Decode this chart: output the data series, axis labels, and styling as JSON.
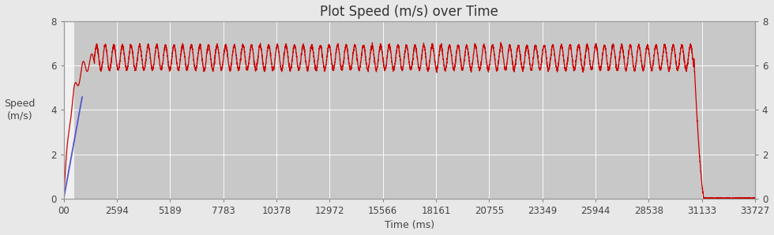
{
  "title": "Plot Speed (m/s) over Time",
  "xlabel": "Time (ms)",
  "ylabel": "Speed\n(m/s)",
  "xlim": [
    0,
    33727
  ],
  "ylim": [
    0,
    8
  ],
  "yticks": [
    0,
    2,
    4,
    6,
    8
  ],
  "xticks": [
    0,
    2594,
    5189,
    7783,
    10378,
    12972,
    15566,
    18161,
    20755,
    23349,
    25944,
    28538,
    31133,
    33727
  ],
  "xtick_labels": [
    "00",
    "2594",
    "5189",
    "7783",
    "10378",
    "12972",
    "15566",
    "18161",
    "20755",
    "23349",
    "25944",
    "28538",
    "31133",
    "33727"
  ],
  "plot_bg_color": "#c8c8c8",
  "outer_bg_color": "#e8e8e8",
  "white_region_end": 530,
  "line_color_red": "#cc0000",
  "line_color_blue": "#5555cc",
  "title_fontsize": 12,
  "label_fontsize": 9,
  "tick_fontsize": 8.5,
  "accel_end_ms": 1500,
  "cruise_end_ms": 30750,
  "decel_end_ms": 31250,
  "cruise_base": 6.35,
  "osc_amp": 0.55,
  "osc_period_ms": 420,
  "grid_color": "#ffffff",
  "grid_alpha": 0.9,
  "grid_lw": 0.7
}
